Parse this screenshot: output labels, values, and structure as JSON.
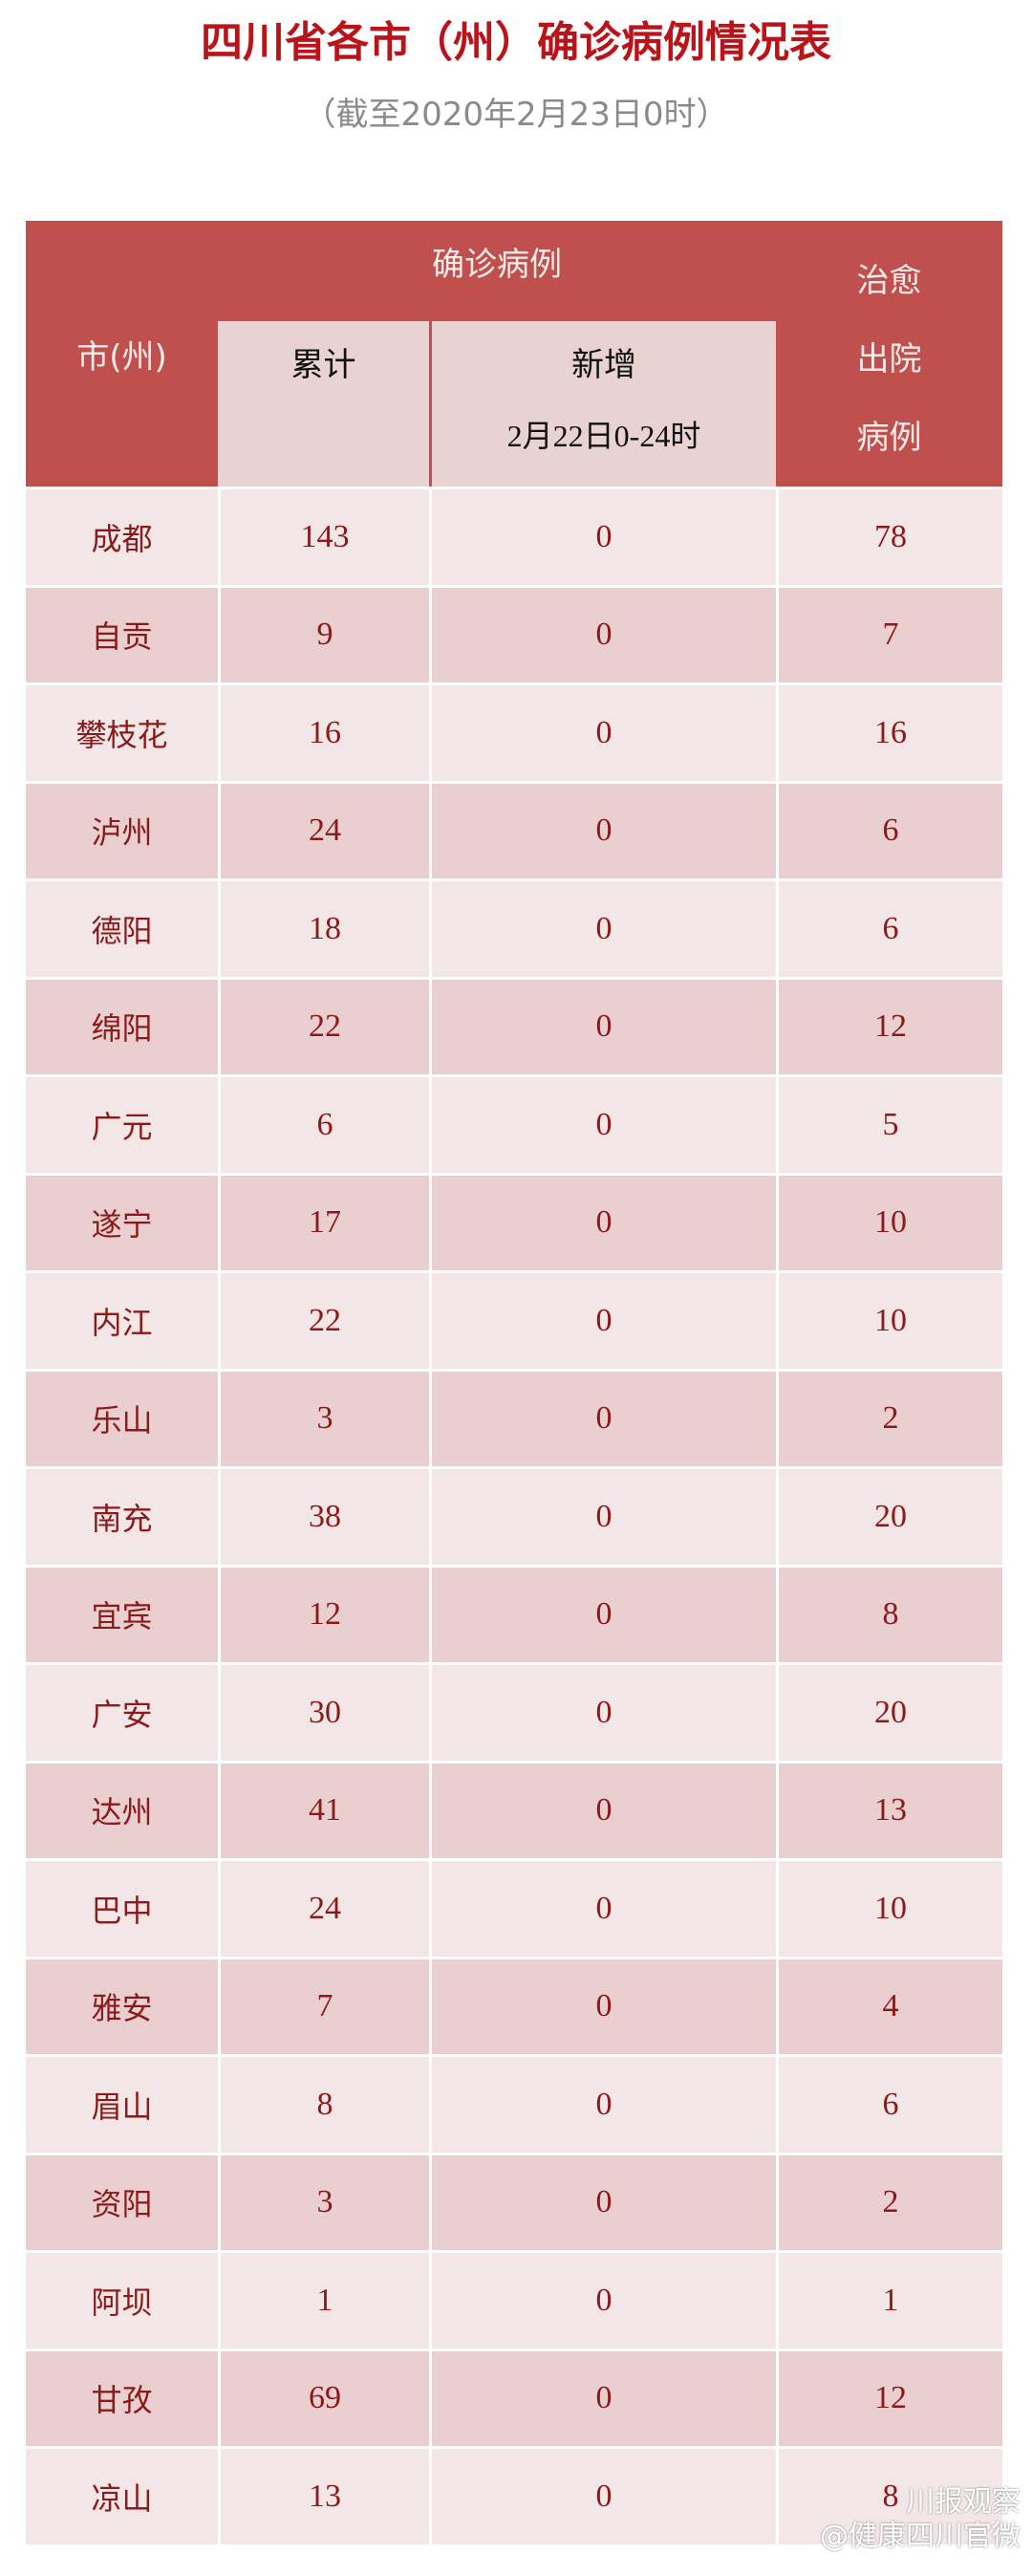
{
  "title": "四川省各市（州）确诊病例情况表",
  "subtitle": "（截至2020年2月23日0时）",
  "header": {
    "city": "市(州)",
    "confirmed": "确诊病例",
    "cumulative": "累计",
    "new": "新增",
    "new_period": "2月22日0-24时",
    "recovered": [
      "治愈",
      "出院",
      "病例"
    ]
  },
  "colors": {
    "header": "#c0504d",
    "text": "#8b1a1a",
    "title": "#b8141a"
  },
  "rows": [
    {
      "city": "成都",
      "cumulative": "143",
      "new": "0",
      "recovered": "78"
    },
    {
      "city": "自贡",
      "cumulative": "9",
      "new": "0",
      "recovered": "7"
    },
    {
      "city": "攀枝花",
      "cumulative": "16",
      "new": "0",
      "recovered": "16"
    },
    {
      "city": "泸州",
      "cumulative": "24",
      "new": "0",
      "recovered": "6"
    },
    {
      "city": "德阳",
      "cumulative": "18",
      "new": "0",
      "recovered": "6"
    },
    {
      "city": "绵阳",
      "cumulative": "22",
      "new": "0",
      "recovered": "12"
    },
    {
      "city": "广元",
      "cumulative": "6",
      "new": "0",
      "recovered": "5"
    },
    {
      "city": "遂宁",
      "cumulative": "17",
      "new": "0",
      "recovered": "10"
    },
    {
      "city": "内江",
      "cumulative": "22",
      "new": "0",
      "recovered": "10"
    },
    {
      "city": "乐山",
      "cumulative": "3",
      "new": "0",
      "recovered": "2"
    },
    {
      "city": "南充",
      "cumulative": "38",
      "new": "0",
      "recovered": "20"
    },
    {
      "city": "宜宾",
      "cumulative": "12",
      "new": "0",
      "recovered": "8"
    },
    {
      "city": "广安",
      "cumulative": "30",
      "new": "0",
      "recovered": "20"
    },
    {
      "city": "达州",
      "cumulative": "41",
      "new": "0",
      "recovered": "13"
    },
    {
      "city": "巴中",
      "cumulative": "24",
      "new": "0",
      "recovered": "10"
    },
    {
      "city": "雅安",
      "cumulative": "7",
      "new": "0",
      "recovered": "4"
    },
    {
      "city": "眉山",
      "cumulative": "8",
      "new": "0",
      "recovered": "6"
    },
    {
      "city": "资阳",
      "cumulative": "3",
      "new": "0",
      "recovered": "2"
    },
    {
      "city": "阿坝",
      "cumulative": "1",
      "new": "0",
      "recovered": "1"
    },
    {
      "city": "甘孜",
      "cumulative": "69",
      "new": "0",
      "recovered": "12"
    },
    {
      "city": "凉山",
      "cumulative": "13",
      "new": "0",
      "recovered": "8"
    }
  ],
  "watermark": [
    "川报观察",
    "@健康四川官微"
  ]
}
